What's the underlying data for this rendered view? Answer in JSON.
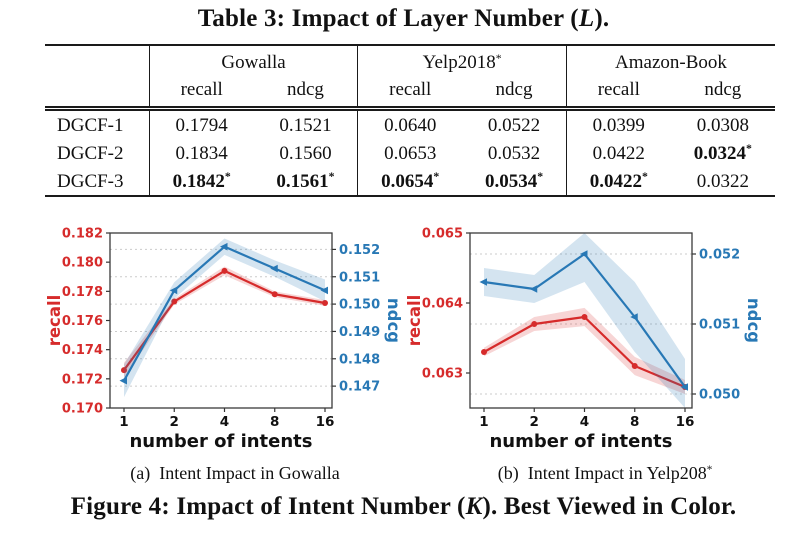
{
  "page": {
    "table_title": {
      "prefix": "Table 3: Impact of Layer Number (",
      "var": "L",
      "suffix": ")."
    },
    "figure_title": {
      "prefix": "Figure 4: Impact of Intent Number (",
      "var": "K",
      "suffix": "). Best Viewed in Color."
    }
  },
  "table": {
    "groups": [
      {
        "label": "Gowalla",
        "sup": ""
      },
      {
        "label": "Yelp2018",
        "sup": "*"
      },
      {
        "label": "Amazon-Book",
        "sup": ""
      }
    ],
    "subcols": [
      "recall",
      "ndcg",
      "recall",
      "ndcg",
      "recall",
      "ndcg"
    ],
    "rows": [
      {
        "label": "DGCF-1",
        "cells": [
          {
            "v": "0.1794"
          },
          {
            "v": "0.1521"
          },
          {
            "v": "0.0640"
          },
          {
            "v": "0.0522"
          },
          {
            "v": "0.0399"
          },
          {
            "v": "0.0308"
          }
        ]
      },
      {
        "label": "DGCF-2",
        "cells": [
          {
            "v": "0.1834"
          },
          {
            "v": "0.1560"
          },
          {
            "v": "0.0653"
          },
          {
            "v": "0.0532"
          },
          {
            "v": "0.0422"
          },
          {
            "v": "0.0324",
            "star": true,
            "bold": true
          }
        ]
      },
      {
        "label": "DGCF-3",
        "cells": [
          {
            "v": "0.1842",
            "star": true,
            "bold": true
          },
          {
            "v": "0.1561",
            "star": true,
            "bold": true
          },
          {
            "v": "0.0654",
            "star": true,
            "bold": true
          },
          {
            "v": "0.0534",
            "star": true,
            "bold": true
          },
          {
            "v": "0.0422",
            "star": true,
            "bold": true
          },
          {
            "v": "0.0322"
          }
        ]
      }
    ]
  },
  "chart_data": [
    {
      "id": "gowalla",
      "type": "line",
      "caption": {
        "label": "(a)",
        "text": "Intent Impact in Gowalla",
        "sup": ""
      },
      "x_categories": [
        "1",
        "2",
        "4",
        "8",
        "16"
      ],
      "xlabel": "number of intents",
      "grid": "horizontal-dashed-on-right-axis-ticks",
      "left_axis": {
        "label": "recall",
        "color": "#d62b2b",
        "lim": [
          0.17,
          0.182
        ],
        "ticks": [
          "0.170",
          "0.172",
          "0.174",
          "0.176",
          "0.178",
          "0.180",
          "0.182"
        ]
      },
      "right_axis": {
        "label": "ndcg",
        "color": "#2878b5",
        "lim": [
          0.1462,
          0.1526
        ],
        "ticks": [
          "0.147",
          "0.148",
          "0.149",
          "0.150",
          "0.151",
          "0.152"
        ]
      },
      "series": [
        {
          "name": "recall",
          "axis": "left",
          "marker": "circle",
          "color": "#d62b2b",
          "values": [
            0.1726,
            0.1773,
            0.1794,
            0.1778,
            0.1772
          ],
          "band": [
            0.0005,
            0.0002,
            0.0003,
            0.0002,
            0.0002
          ]
        },
        {
          "name": "ndcg",
          "axis": "right",
          "marker": "triangle",
          "color": "#2878b5",
          "values": [
            0.1472,
            0.1505,
            0.1521,
            0.1513,
            0.1505
          ],
          "band": [
            0.0006,
            0.0003,
            0.0003,
            0.0003,
            0.0004
          ]
        }
      ]
    },
    {
      "id": "yelp2018",
      "type": "line",
      "caption": {
        "label": "(b)",
        "text": "Intent Impact in Yelp208",
        "sup": "*"
      },
      "x_categories": [
        "1",
        "2",
        "4",
        "8",
        "16"
      ],
      "xlabel": "number of intents",
      "grid": "horizontal-dashed-on-right-axis-ticks",
      "left_axis": {
        "label": "recall",
        "color": "#d62b2b",
        "lim": [
          0.0625,
          0.065
        ],
        "ticks": [
          "0.063",
          "0.064",
          "0.065"
        ]
      },
      "right_axis": {
        "label": "ndcg",
        "color": "#2878b5",
        "lim": [
          0.0498,
          0.0523
        ],
        "ticks": [
          "0.050",
          "0.051",
          "0.052"
        ]
      },
      "series": [
        {
          "name": "recall",
          "axis": "left",
          "marker": "circle",
          "color": "#d62b2b",
          "values": [
            0.0633,
            0.0637,
            0.0638,
            0.0631,
            0.0628
          ],
          "band": [
            6e-05,
            0.0001,
            0.00013,
            0.00013,
            0.0001
          ]
        },
        {
          "name": "ndcg",
          "axis": "right",
          "marker": "triangle",
          "color": "#2878b5",
          "values": [
            0.0516,
            0.0515,
            0.052,
            0.0511,
            0.0501
          ],
          "band": [
            0.0002,
            0.0002,
            0.0004,
            0.0005,
            0.0004
          ]
        }
      ]
    }
  ]
}
